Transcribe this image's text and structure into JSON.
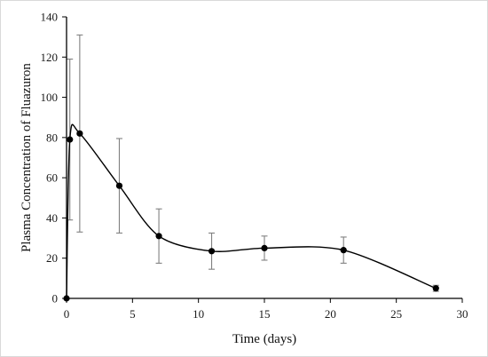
{
  "chart_data": {
    "type": "line",
    "title": "",
    "xlabel": "Time (days)",
    "ylabel": "Plasma Concentration of Fluazuron",
    "xlim": [
      0,
      30
    ],
    "ylim": [
      0,
      140
    ],
    "x_ticks": [
      0,
      5,
      10,
      15,
      20,
      25,
      30
    ],
    "y_ticks": [
      0,
      20,
      40,
      60,
      80,
      100,
      120,
      140
    ],
    "grid": false,
    "legend": "none",
    "smooth_line": true,
    "series": [
      {
        "x": [
          0,
          0.25,
          1,
          4,
          7,
          11,
          15,
          21,
          28
        ],
        "y": [
          0,
          79,
          82,
          56,
          31,
          23.5,
          25,
          24,
          5
        ],
        "error": [
          0,
          40,
          49,
          23.5,
          13.5,
          9,
          6,
          6.5,
          1.5
        ]
      }
    ],
    "colors": {
      "line": "#000000",
      "marker": "#000000",
      "error_bar": "#808080",
      "axis": "#000000"
    }
  }
}
